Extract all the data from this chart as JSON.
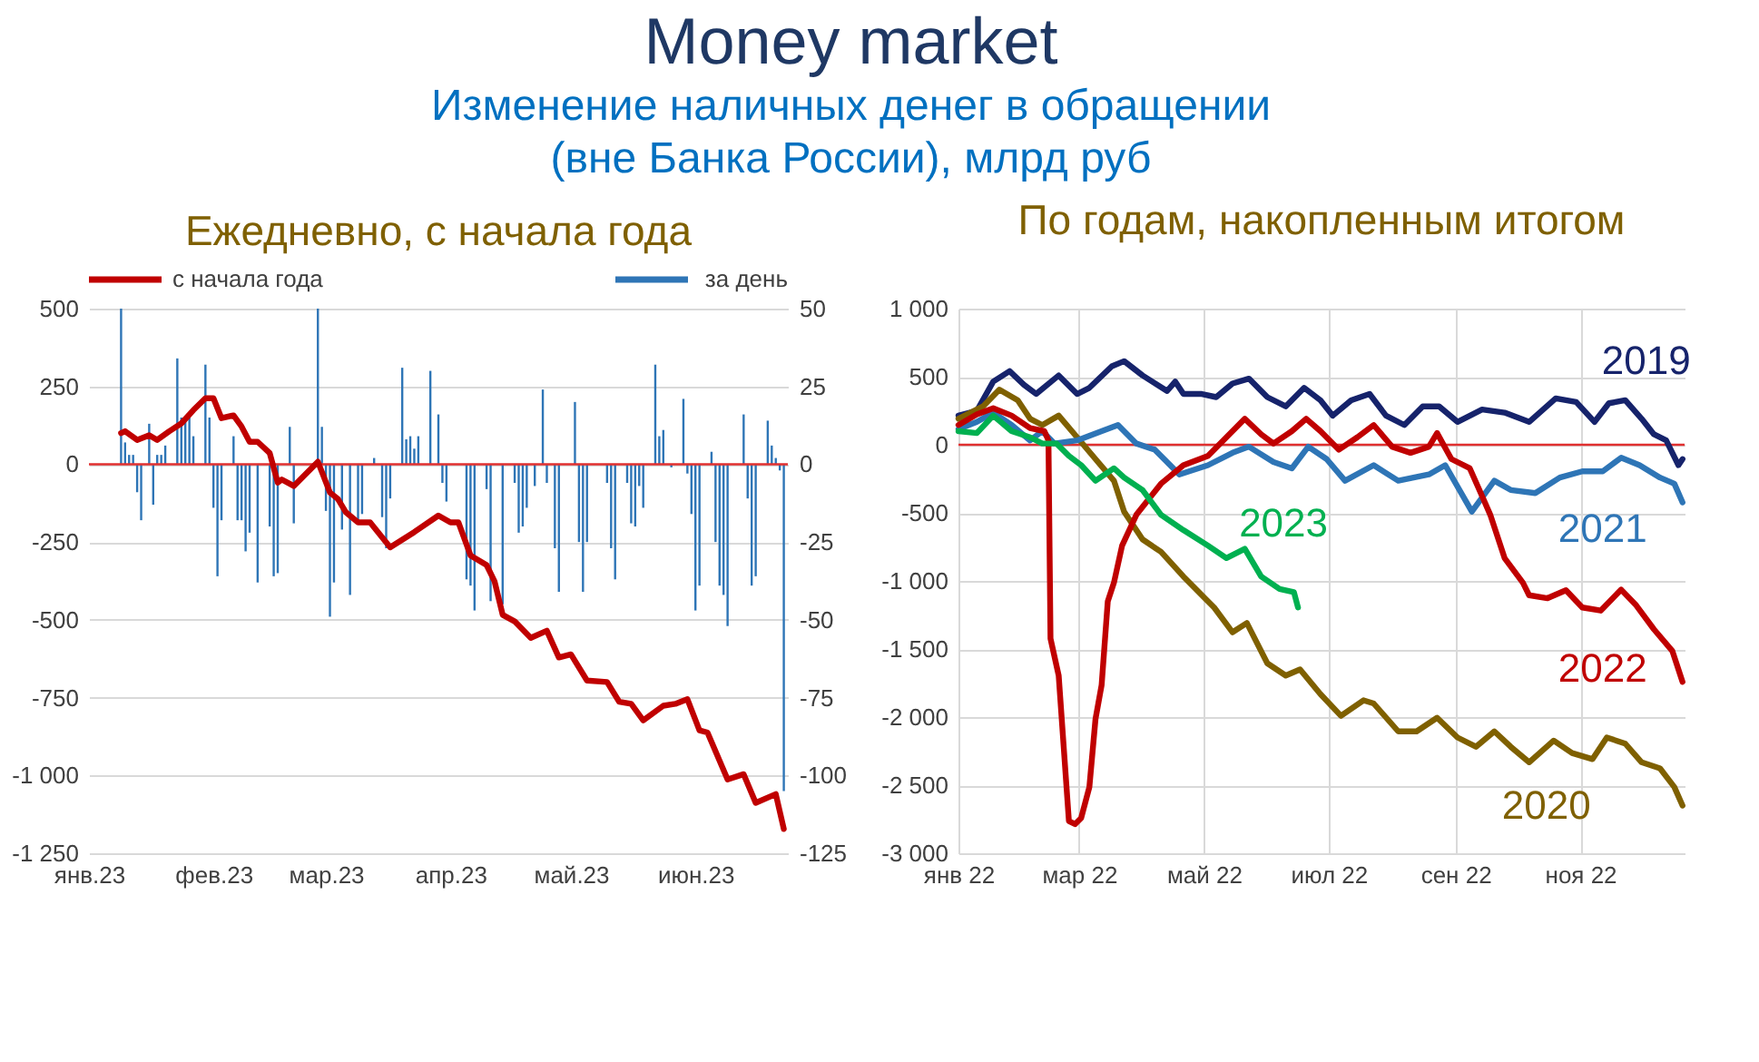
{
  "chart_data": [
    {
      "type": "line",
      "title": "Ежедневно, с начала года",
      "annotations": [
        "Money market",
        "Изменение наличных денег в обращении\n(вне Банка России), млрд руб"
      ],
      "xlim": [
        "2023-01-01",
        "2023-06-24"
      ],
      "xticks": [
        {
          "value": "2023-01-01",
          "label": "янв.23"
        },
        {
          "value": "2023-02-01",
          "label": "фев.23"
        },
        {
          "value": "2023-03-01",
          "label": "мар.23"
        },
        {
          "value": "2023-04-01",
          "label": "апр.23"
        },
        {
          "value": "2023-05-01",
          "label": "май.23"
        },
        {
          "value": "2023-06-01",
          "label": "июн.23"
        }
      ],
      "ylim": [
        -1250,
        500
      ],
      "yticks": [
        500,
        250,
        0,
        -250,
        -500,
        -750,
        {
          "value": -1000,
          "label": "-1 000"
        },
        {
          "value": -1250,
          "label": "-1 250"
        }
      ],
      "y2lim": [
        -125,
        50
      ],
      "y2ticks": [
        50,
        25,
        0,
        -25,
        -50,
        -75,
        -100,
        -125
      ],
      "grid": "y",
      "legend": "top",
      "ref_lines": [
        {
          "axis": "y",
          "value": 0,
          "color": "#e03030"
        }
      ],
      "series": [
        {
          "name": "с начала года",
          "type": "line",
          "axis": "y",
          "color": "#c00000",
          "x": [
            "2023-01-09",
            "2023-01-10",
            "2023-01-13",
            "2023-01-16",
            "2023-01-18",
            "2023-01-21",
            "2023-01-24",
            "2023-01-27",
            "2023-01-30",
            "2023-02-01",
            "2023-02-03",
            "2023-02-06",
            "2023-02-08",
            "2023-02-10",
            "2023-02-12",
            "2023-02-15",
            "2023-02-17",
            "2023-02-18",
            "2023-02-21",
            "2023-02-27",
            "2023-03-02",
            "2023-03-04",
            "2023-03-06",
            "2023-03-09",
            "2023-03-12",
            "2023-03-17",
            "2023-03-23",
            "2023-03-29",
            "2023-04-01",
            "2023-04-03",
            "2023-04-06",
            "2023-04-10",
            "2023-04-12",
            "2023-04-14",
            "2023-04-17",
            "2023-04-21",
            "2023-04-25",
            "2023-04-28",
            "2023-05-01",
            "2023-05-05",
            "2023-05-10",
            "2023-05-13",
            "2023-05-16",
            "2023-05-19",
            "2023-05-24",
            "2023-05-27",
            "2023-05-30",
            "2023-06-02",
            "2023-06-04",
            "2023-06-09",
            "2023-06-13",
            "2023-06-16",
            "2023-06-21",
            "2023-06-23"
          ],
          "values": [
            100,
            106,
            78,
            93,
            78,
            106,
            131,
            174,
            212,
            212,
            148,
            157,
            121,
            72,
            72,
            36,
            -59,
            -49,
            -70,
            8,
            -91,
            -112,
            -155,
            -187,
            -187,
            -267,
            -218,
            -165,
            -187,
            -187,
            -293,
            -324,
            -377,
            -484,
            -505,
            -558,
            -535,
            -621,
            -611,
            -695,
            -700,
            -763,
            -770,
            -823,
            -776,
            -770,
            -755,
            -855,
            -862,
            -1013,
            -996,
            -1088,
            -1060,
            -1172
          ]
        },
        {
          "name": "за день",
          "type": "bar",
          "axis": "y2",
          "color": "#2e75b6",
          "x": [
            "2023-01-09",
            "2023-01-10",
            "2023-01-11",
            "2023-01-12",
            "2023-01-13",
            "2023-01-14",
            "2023-01-16",
            "2023-01-17",
            "2023-01-18",
            "2023-01-19",
            "2023-01-20",
            "2023-01-23",
            "2023-01-24",
            "2023-01-25",
            "2023-01-26",
            "2023-01-27",
            "2023-01-30",
            "2023-01-31",
            "2023-02-01",
            "2023-02-02",
            "2023-02-03",
            "2023-02-06",
            "2023-02-07",
            "2023-02-08",
            "2023-02-09",
            "2023-02-10",
            "2023-02-12",
            "2023-02-15",
            "2023-02-16",
            "2023-02-17",
            "2023-02-20",
            "2023-02-21",
            "2023-02-27",
            "2023-02-28",
            "2023-03-01",
            "2023-03-02",
            "2023-03-03",
            "2023-03-05",
            "2023-03-07",
            "2023-03-09",
            "2023-03-10",
            "2023-03-13",
            "2023-03-15",
            "2023-03-16",
            "2023-03-17",
            "2023-03-20",
            "2023-03-21",
            "2023-03-22",
            "2023-03-23",
            "2023-03-24",
            "2023-03-27",
            "2023-03-29",
            "2023-03-30",
            "2023-03-31",
            "2023-04-05",
            "2023-04-06",
            "2023-04-07",
            "2023-04-10",
            "2023-04-11",
            "2023-04-14",
            "2023-04-17",
            "2023-04-18",
            "2023-04-19",
            "2023-04-20",
            "2023-04-22",
            "2023-04-24",
            "2023-04-25",
            "2023-04-27",
            "2023-04-28",
            "2023-05-02",
            "2023-05-03",
            "2023-05-04",
            "2023-05-05",
            "2023-05-10",
            "2023-05-11",
            "2023-05-12",
            "2023-05-15",
            "2023-05-16",
            "2023-05-17",
            "2023-05-18",
            "2023-05-19",
            "2023-05-22",
            "2023-05-23",
            "2023-05-24",
            "2023-05-26",
            "2023-05-29",
            "2023-05-30",
            "2023-05-31",
            "2023-06-01",
            "2023-06-02",
            "2023-06-05",
            "2023-06-06",
            "2023-06-07",
            "2023-06-08",
            "2023-06-09",
            "2023-06-13",
            "2023-06-14",
            "2023-06-15",
            "2023-06-16",
            "2023-06-19",
            "2023-06-20",
            "2023-06-21",
            "2023-06-22",
            "2023-06-23"
          ],
          "values": [
            50,
            7,
            3,
            3,
            -9,
            -18,
            13,
            -13,
            3,
            3,
            6,
            34,
            15,
            15,
            16,
            9,
            32,
            15,
            -14,
            -36,
            -18,
            9,
            -18,
            -18,
            -28,
            -22,
            -38,
            -20,
            -36,
            -35,
            12,
            -19,
            50,
            12,
            -15,
            -49,
            -38,
            -21,
            -42,
            -19,
            -16,
            2,
            -17,
            -27,
            -11,
            31,
            8,
            9,
            5,
            9,
            30,
            16,
            -6,
            -12,
            -37,
            -39,
            -47,
            -8,
            -44,
            -45,
            -6,
            -22,
            -20,
            -14,
            -7,
            24,
            -6,
            -27,
            -41,
            20,
            -25,
            -41,
            -25,
            -6,
            -27,
            -37,
            -6,
            -19,
            -20,
            -7,
            -14,
            32,
            9,
            11,
            -1,
            21,
            -3,
            -16,
            -47,
            -39,
            4,
            -25,
            -39,
            -42,
            -52,
            16,
            -11,
            -39,
            -36,
            14,
            6,
            2,
            -2,
            -105
          ]
        }
      ]
    },
    {
      "type": "line",
      "title": "По годам, накопленным итогом",
      "xlim": [
        "2022-01-01",
        "2022-12-22"
      ],
      "xticks": [
        {
          "value": "2022-01-01",
          "label": "янв 22"
        },
        {
          "value": "2022-03-01",
          "label": "мар 22"
        },
        {
          "value": "2022-05-01",
          "label": "май 22"
        },
        {
          "value": "2022-07-01",
          "label": "июл 22"
        },
        {
          "value": "2022-09-01",
          "label": "сен 22"
        },
        {
          "value": "2022-11-01",
          "label": "ноя 22"
        }
      ],
      "ylim": [
        -3000,
        1000
      ],
      "yticks": [
        {
          "value": 1000,
          "label": "1 000"
        },
        500,
        0,
        -500,
        {
          "value": -1000,
          "label": "-1 000"
        },
        {
          "value": -1500,
          "label": "-1 500"
        },
        {
          "value": -2000,
          "label": "-2 000"
        },
        {
          "value": -2500,
          "label": "-2 500"
        },
        {
          "value": -3000,
          "label": "-3 000"
        }
      ],
      "grid": true,
      "ref_lines": [
        {
          "axis": "y",
          "value": 0,
          "color": "#e03030"
        }
      ],
      "series": [
        {
          "name": "2019",
          "color": "#16236b",
          "x": [
            "2022-01-01",
            "2022-01-10",
            "2022-01-18",
            "2022-01-26",
            "2022-02-02",
            "2022-02-08",
            "2022-02-19",
            "2022-02-28",
            "2022-03-06",
            "2022-03-17",
            "2022-03-23",
            "2022-04-01",
            "2022-04-13",
            "2022-04-17",
            "2022-04-21",
            "2022-04-30",
            "2022-05-07",
            "2022-05-15",
            "2022-05-23",
            "2022-06-01",
            "2022-06-10",
            "2022-06-19",
            "2022-06-27",
            "2022-07-03",
            "2022-07-12",
            "2022-07-21",
            "2022-07-29",
            "2022-08-07",
            "2022-08-16",
            "2022-08-24",
            "2022-09-02",
            "2022-09-14",
            "2022-09-25",
            "2022-10-07",
            "2022-10-20",
            "2022-10-30",
            "2022-11-08",
            "2022-11-15",
            "2022-11-23",
            "2022-12-01",
            "2022-12-07",
            "2022-12-13",
            "2022-12-19",
            "2022-12-21"
          ],
          "values": [
            214,
            250,
            464,
            541,
            441,
            373,
            509,
            373,
            418,
            577,
            614,
            509,
            395,
            464,
            373,
            373,
            350,
            450,
            486,
            350,
            282,
            418,
            327,
            214,
            327,
            373,
            214,
            145,
            282,
            282,
            168,
            259,
            236,
            168,
            341,
            314,
            168,
            305,
            327,
            191,
            77,
            32,
            -150,
            -105
          ]
        },
        {
          "name": "2020",
          "color": "#7f6000",
          "x": [
            "2022-01-01",
            "2022-01-13",
            "2022-01-21",
            "2022-01-30",
            "2022-02-05",
            "2022-02-11",
            "2022-02-19",
            "2022-02-28",
            "2022-03-09",
            "2022-03-18",
            "2022-03-23",
            "2022-04-01",
            "2022-04-10",
            "2022-04-21",
            "2022-05-03",
            "2022-05-06",
            "2022-05-15",
            "2022-05-22",
            "2022-06-01",
            "2022-06-10",
            "2022-06-17",
            "2022-06-27",
            "2022-07-07",
            "2022-07-18",
            "2022-07-23",
            "2022-08-04",
            "2022-08-13",
            "2022-08-23",
            "2022-09-02",
            "2022-09-11",
            "2022-09-20",
            "2022-09-28",
            "2022-10-07",
            "2022-10-19",
            "2022-10-28",
            "2022-11-07",
            "2022-11-14",
            "2022-11-23",
            "2022-12-01",
            "2022-12-10",
            "2022-12-17",
            "2022-12-21"
          ],
          "values": [
            191,
            282,
            405,
            327,
            191,
            145,
            214,
            55,
            -105,
            -264,
            -491,
            -695,
            -786,
            -968,
            -1150,
            -1195,
            -1377,
            -1309,
            -1605,
            -1695,
            -1650,
            -1832,
            -1991,
            -1877,
            -1900,
            -2105,
            -2105,
            -2005,
            -2150,
            -2218,
            -2105,
            -2218,
            -2332,
            -2173,
            -2264,
            -2309,
            -2150,
            -2195,
            -2332,
            -2377,
            -2514,
            -2650
          ]
        },
        {
          "name": "2021",
          "color": "#2e75b6",
          "x": [
            "2022-01-01",
            "2022-01-10",
            "2022-01-18",
            "2022-01-27",
            "2022-02-05",
            "2022-02-11",
            "2022-02-17",
            "2022-02-28",
            "2022-03-12",
            "2022-03-20",
            "2022-03-29",
            "2022-04-07",
            "2022-04-19",
            "2022-05-03",
            "2022-05-15",
            "2022-05-23",
            "2022-06-04",
            "2022-06-13",
            "2022-06-21",
            "2022-06-30",
            "2022-07-09",
            "2022-07-23",
            "2022-08-04",
            "2022-08-19",
            "2022-08-27",
            "2022-09-09",
            "2022-09-20",
            "2022-09-28",
            "2022-10-10",
            "2022-10-22",
            "2022-11-02",
            "2022-11-12",
            "2022-11-21",
            "2022-11-30",
            "2022-12-10",
            "2022-12-17",
            "2022-12-21"
          ],
          "values": [
            114,
            168,
            236,
            145,
            32,
            100,
            9,
            32,
            100,
            145,
            9,
            -36,
            -218,
            -150,
            -59,
            -14,
            -127,
            -173,
            -14,
            -105,
            -264,
            -150,
            -264,
            -218,
            -150,
            -491,
            -264,
            -332,
            -355,
            -241,
            -195,
            -195,
            -95,
            -150,
            -241,
            -286,
            -423
          ]
        },
        {
          "name": "2022",
          "color": "#c00000",
          "x": [
            "2022-01-01",
            "2022-01-10",
            "2022-01-18",
            "2022-01-27",
            "2022-02-05",
            "2022-02-12",
            "2022-02-14",
            "2022-02-15",
            "2022-02-19",
            "2022-02-24",
            "2022-02-27",
            "2022-03-02",
            "2022-03-06",
            "2022-03-09",
            "2022-03-12",
            "2022-03-15",
            "2022-03-18",
            "2022-03-22",
            "2022-03-29",
            "2022-04-10",
            "2022-04-21",
            "2022-05-03",
            "2022-05-12",
            "2022-05-21",
            "2022-05-29",
            "2022-06-04",
            "2022-06-13",
            "2022-06-20",
            "2022-06-27",
            "2022-07-06",
            "2022-07-15",
            "2022-07-23",
            "2022-08-01",
            "2022-08-10",
            "2022-08-19",
            "2022-08-23",
            "2022-08-30",
            "2022-09-08",
            "2022-09-14",
            "2022-09-18",
            "2022-09-25",
            "2022-10-04",
            "2022-10-07",
            "2022-10-16",
            "2022-10-25",
            "2022-11-02",
            "2022-11-11",
            "2022-11-21",
            "2022-11-28",
            "2022-12-07",
            "2022-12-16",
            "2022-12-21"
          ],
          "values": [
            145,
            223,
            268,
            214,
            123,
            100,
            32,
            -1423,
            -1695,
            -2764,
            -2786,
            -2741,
            -2514,
            -2014,
            -1764,
            -1150,
            -1014,
            -741,
            -514,
            -286,
            -150,
            -82,
            55,
            191,
            77,
            9,
            100,
            191,
            100,
            -36,
            55,
            145,
            -14,
            -59,
            -14,
            86,
            -105,
            -173,
            -377,
            -514,
            -832,
            -1014,
            -1105,
            -1127,
            -1068,
            -1195,
            -1218,
            -1064,
            -1173,
            -1355,
            -1514,
            -1741
          ]
        },
        {
          "name": "2023",
          "color": "#00b050",
          "x": [
            "2022-01-01",
            "2022-01-10",
            "2022-01-18",
            "2022-01-27",
            "2022-02-05",
            "2022-02-11",
            "2022-02-18",
            "2022-02-24",
            "2022-03-02",
            "2022-03-09",
            "2022-03-18",
            "2022-03-23",
            "2022-04-01",
            "2022-04-10",
            "2022-04-21",
            "2022-05-03",
            "2022-05-12",
            "2022-05-21",
            "2022-05-29",
            "2022-06-07",
            "2022-06-14",
            "2022-06-16"
          ],
          "values": [
            100,
            86,
            214,
            100,
            55,
            9,
            9,
            -82,
            -150,
            -264,
            -173,
            -241,
            -332,
            -514,
            -627,
            -741,
            -832,
            -764,
            -968,
            -1059,
            -1082,
            -1195
          ]
        }
      ]
    }
  ]
}
